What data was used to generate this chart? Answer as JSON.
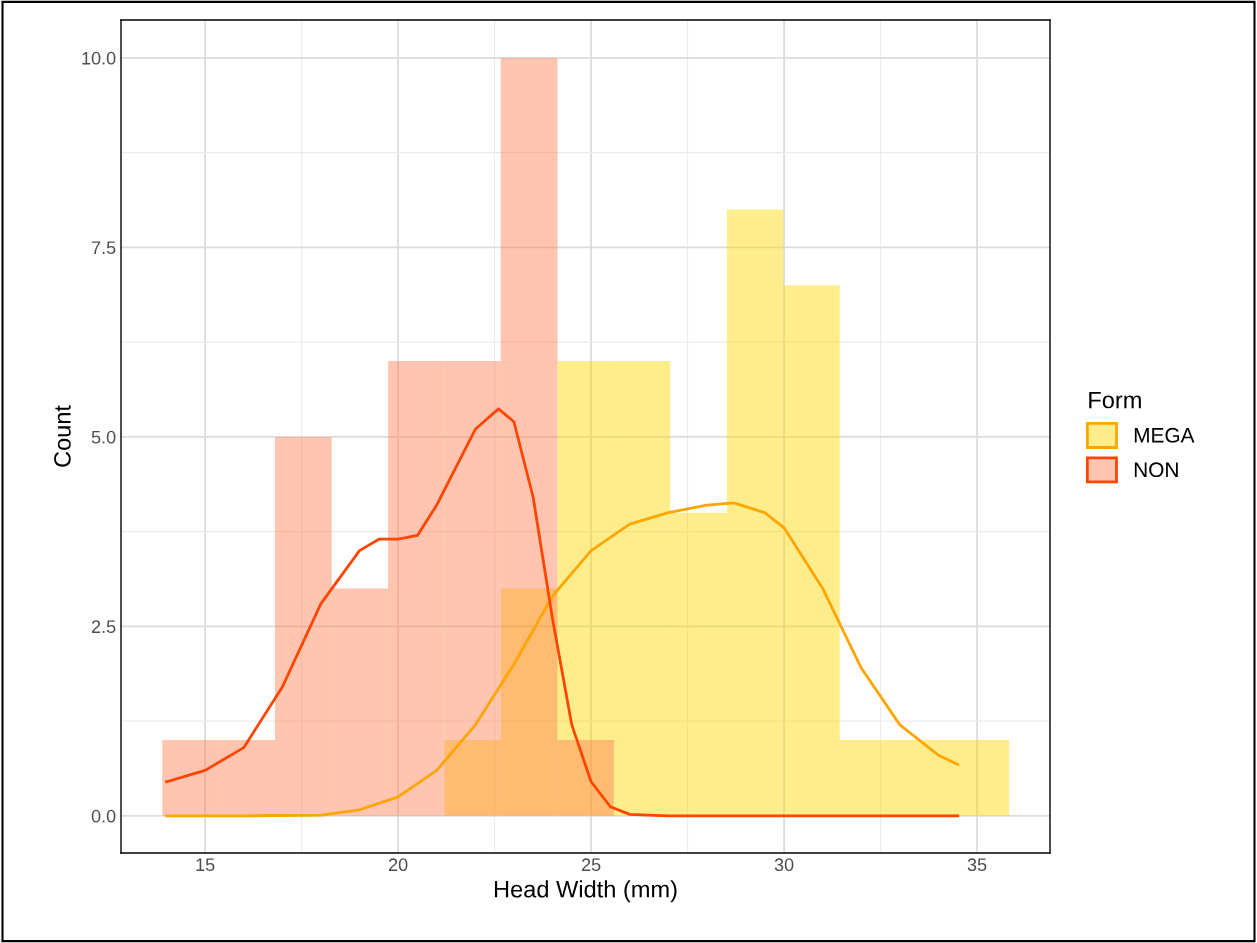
{
  "chart_data": {
    "type": "histogram",
    "xlabel": "Head Width (mm)",
    "ylabel": "Count",
    "legend_title": "Form",
    "legend": "right",
    "grid": true,
    "xlim": [
      12.82,
      36.89
    ],
    "ylim": [
      -0.49,
      10.5
    ],
    "xticks": [
      15,
      20,
      25,
      30,
      35
    ],
    "yticks": [
      {
        "value": 0,
        "label": "0.0"
      },
      {
        "value": 2.5,
        "label": "2.5"
      },
      {
        "value": 5,
        "label": "5.0"
      },
      {
        "value": 7.5,
        "label": "7.5"
      },
      {
        "value": 10,
        "label": "10.0"
      }
    ],
    "bins": [
      13.89,
      15.35,
      16.81,
      18.28,
      19.74,
      21.2,
      22.66,
      24.13,
      25.59,
      27.05,
      28.52,
      29.98,
      31.44,
      32.9,
      34.37,
      35.83
    ],
    "series": [
      {
        "name": "MEGA",
        "color": "#ffd700",
        "values": [
          0,
          0,
          0,
          0,
          0,
          1,
          3,
          6,
          6,
          4,
          8,
          7,
          1,
          1,
          1
        ]
      },
      {
        "name": "NON",
        "color": "#ff7f50",
        "values": [
          1,
          1,
          5,
          3,
          6,
          6,
          10,
          1,
          0,
          0,
          0,
          0,
          0,
          0,
          0
        ]
      },
      {
        "type": "line",
        "color": "#ffa500",
        "x": [
          14,
          16,
          18,
          19,
          20,
          21,
          22,
          23,
          24,
          25,
          26,
          27,
          28,
          28.7,
          29.5,
          30,
          31,
          32,
          33,
          34,
          34.5
        ],
        "values": [
          0,
          0,
          0.01,
          0.08,
          0.25,
          0.6,
          1.2,
          2.0,
          2.9,
          3.5,
          3.85,
          4.0,
          4.1,
          4.13,
          4.0,
          3.8,
          3.0,
          1.95,
          1.2,
          0.8,
          0.68
        ]
      },
      {
        "type": "line",
        "color": "#ff4500",
        "x": [
          14,
          15,
          16,
          17,
          18,
          19,
          19.5,
          20,
          20.5,
          21,
          21.5,
          22,
          22.6,
          23,
          23.5,
          24,
          24.5,
          25,
          25.5,
          26,
          27,
          34.5
        ],
        "values": [
          0.45,
          0.6,
          0.9,
          1.7,
          2.8,
          3.5,
          3.65,
          3.65,
          3.7,
          4.1,
          4.6,
          5.1,
          5.37,
          5.2,
          4.2,
          2.6,
          1.2,
          0.45,
          0.12,
          0.02,
          0,
          0
        ]
      }
    ]
  }
}
